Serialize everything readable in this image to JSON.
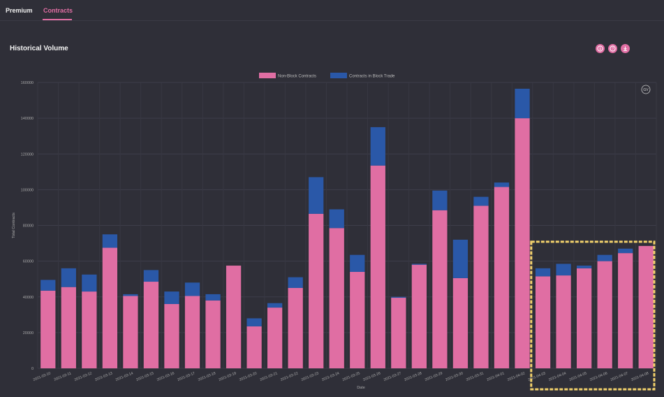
{
  "tabs": [
    {
      "label": "Premium",
      "active": false
    },
    {
      "label": "Contracts",
      "active": true
    }
  ],
  "section": {
    "title": "Historical Volume"
  },
  "toolbar": {
    "icons": [
      "info-icon",
      "info-icon",
      "download-icon"
    ],
    "chart_logo": "GV"
  },
  "colors": {
    "background": "#2f2f38",
    "accent": "#e06ea3",
    "non_block": "#e06ea3",
    "block": "#2a58a8",
    "highlight": "#f2d16b"
  },
  "chart_data": {
    "type": "bar",
    "stacked": true,
    "title": "",
    "xlabel": "Date",
    "ylabel": "Total Contracts",
    "ylim": [
      0,
      160000
    ],
    "yticks": [
      "160000",
      "140000",
      "120000",
      "100000",
      "80000",
      "60000",
      "40000",
      "20000",
      "0"
    ],
    "categories": [
      "2021-03-10",
      "2021-03-11",
      "2021-03-12",
      "2021-03-13",
      "2021-03-14",
      "2021-03-15",
      "2021-03-16",
      "2021-03-17",
      "2021-03-18",
      "2021-03-19",
      "2021-03-20",
      "2021-03-21",
      "2021-03-22",
      "2021-03-23",
      "2021-03-24",
      "2021-03-25",
      "2021-03-26",
      "2021-03-27",
      "2021-03-28",
      "2021-03-29",
      "2021-03-30",
      "2021-03-31",
      "2021-04-01",
      "2021-04-02",
      "2021-04-03",
      "2021-04-04",
      "2021-04-05",
      "2021-04-06",
      "2021-04-07",
      "2021-04-08"
    ],
    "series": [
      {
        "name": "Non-Block Contracts",
        "values": [
          43500,
          45500,
          43000,
          67500,
          40500,
          48500,
          36000,
          40500,
          38000,
          57500,
          23500,
          34000,
          45000,
          86500,
          78500,
          54000,
          113500,
          39500,
          58000,
          88500,
          50500,
          91000,
          101500,
          140000,
          51500,
          52000,
          56000,
          60000,
          64500,
          68500
        ]
      },
      {
        "name": "Contracts in Block Trade",
        "values": [
          6000,
          10500,
          9500,
          7500,
          1000,
          6500,
          7000,
          7500,
          3500,
          0,
          4500,
          2500,
          6000,
          20500,
          10500,
          9500,
          21500,
          500,
          500,
          11000,
          21500,
          5000,
          2500,
          16500,
          4500,
          6500,
          1500,
          3500,
          2500,
          0
        ]
      }
    ],
    "legend": "top-center",
    "grid": true,
    "highlight": {
      "from": "2021-04-03",
      "to": "2021-04-08"
    }
  }
}
